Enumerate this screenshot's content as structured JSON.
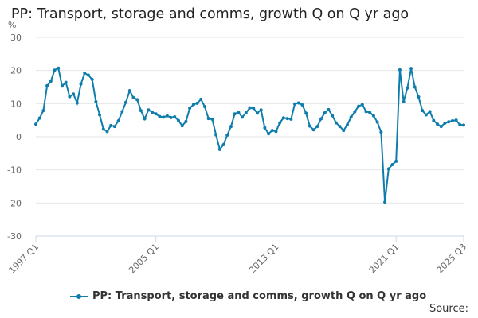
{
  "title": "PP: Transport, storage and comms, growth Q on Q yr ago",
  "source_label": "Source:",
  "colors": {
    "series": "#0f7dac",
    "grid": "#e6e6e6",
    "axis": "#ccd6eb"
  },
  "chart_data": {
    "type": "line",
    "title": "PP: Transport, storage and comms, growth Q on Q yr ago",
    "ylabel": "%",
    "xlabel": "",
    "ylim": [
      -30,
      30
    ],
    "yticks": [
      30,
      20,
      10,
      0,
      -10,
      -20,
      -30
    ],
    "xtick_labels": [
      "1997 Q1",
      "2005 Q1",
      "2013 Q1",
      "2021 Q1",
      "2025 Q3"
    ],
    "grid": true,
    "legend": "bottom",
    "series": [
      {
        "name": "PP: Transport, storage and comms, growth Q on Q yr ago",
        "x": [
          "1997 Q1",
          "1997 Q2",
          "1997 Q3",
          "1997 Q4",
          "1998 Q1",
          "1998 Q2",
          "1998 Q3",
          "1998 Q4",
          "1999 Q1",
          "1999 Q2",
          "1999 Q3",
          "1999 Q4",
          "2000 Q1",
          "2000 Q2",
          "2000 Q3",
          "2000 Q4",
          "2001 Q1",
          "2001 Q2",
          "2001 Q3",
          "2001 Q4",
          "2002 Q1",
          "2002 Q2",
          "2002 Q3",
          "2002 Q4",
          "2003 Q1",
          "2003 Q2",
          "2003 Q3",
          "2003 Q4",
          "2004 Q1",
          "2004 Q2",
          "2004 Q3",
          "2004 Q4",
          "2005 Q1",
          "2005 Q2",
          "2005 Q3",
          "2005 Q4",
          "2006 Q1",
          "2006 Q2",
          "2006 Q3",
          "2006 Q4",
          "2007 Q1",
          "2007 Q2",
          "2007 Q3",
          "2007 Q4",
          "2008 Q1",
          "2008 Q2",
          "2008 Q3",
          "2008 Q4",
          "2009 Q1",
          "2009 Q2",
          "2009 Q3",
          "2009 Q4",
          "2010 Q1",
          "2010 Q2",
          "2010 Q3",
          "2010 Q4",
          "2011 Q1",
          "2011 Q2",
          "2011 Q3",
          "2011 Q4",
          "2012 Q1",
          "2012 Q2",
          "2012 Q3",
          "2012 Q4",
          "2013 Q1",
          "2013 Q2",
          "2013 Q3",
          "2013 Q4",
          "2014 Q1",
          "2014 Q2",
          "2014 Q3",
          "2014 Q4",
          "2015 Q1",
          "2015 Q2",
          "2015 Q3",
          "2015 Q4",
          "2016 Q1",
          "2016 Q2",
          "2016 Q3",
          "2016 Q4",
          "2017 Q1",
          "2017 Q2",
          "2017 Q3",
          "2017 Q4",
          "2018 Q1",
          "2018 Q2",
          "2018 Q3",
          "2018 Q4",
          "2019 Q1",
          "2019 Q2",
          "2019 Q3",
          "2019 Q4",
          "2020 Q1",
          "2020 Q2",
          "2020 Q3",
          "2020 Q4",
          "2021 Q1",
          "2021 Q2",
          "2021 Q3",
          "2021 Q4",
          "2022 Q1",
          "2022 Q2",
          "2022 Q3",
          "2022 Q4",
          "2023 Q1",
          "2023 Q2",
          "2023 Q3",
          "2023 Q4",
          "2024 Q1",
          "2024 Q2",
          "2024 Q3",
          "2024 Q4",
          "2025 Q1",
          "2025 Q2",
          "2025 Q3"
        ],
        "values": [
          3.8,
          5.6,
          7.9,
          15.4,
          16.8,
          20.1,
          20.7,
          15.3,
          16.4,
          12.1,
          12.9,
          10.2,
          15.9,
          19.2,
          18.6,
          17.3,
          10.6,
          6.6,
          2.3,
          1.6,
          3.4,
          3.1,
          4.8,
          7.6,
          10.4,
          13.9,
          11.8,
          11.2,
          7.9,
          5.4,
          8.1,
          7.4,
          6.9,
          6.1,
          5.9,
          6.3,
          5.8,
          6.0,
          4.9,
          3.3,
          4.6,
          8.6,
          9.7,
          10.1,
          11.3,
          9.1,
          5.5,
          5.3,
          0.6,
          -3.8,
          -2.4,
          0.5,
          3.1,
          6.9,
          7.4,
          5.9,
          7.2,
          8.7,
          8.6,
          7.1,
          8.1,
          2.7,
          0.9,
          1.9,
          1.6,
          4.2,
          5.7,
          5.5,
          5.3,
          9.9,
          10.2,
          9.6,
          7.1,
          3.2,
          2.1,
          3.1,
          5.4,
          7.2,
          8.2,
          6.4,
          4.2,
          3.1,
          1.9,
          3.6,
          5.9,
          7.6,
          9.2,
          9.7,
          7.6,
          7.3,
          6.3,
          4.4,
          1.4,
          -19.7,
          -9.7,
          -8.4,
          -7.4,
          20.2,
          10.6,
          14.7,
          20.6,
          15.0,
          12.0,
          7.9,
          6.6,
          7.6,
          4.9,
          3.8,
          3.1,
          4.1,
          4.5,
          4.8,
          5.0,
          3.6,
          3.5
        ]
      }
    ]
  }
}
